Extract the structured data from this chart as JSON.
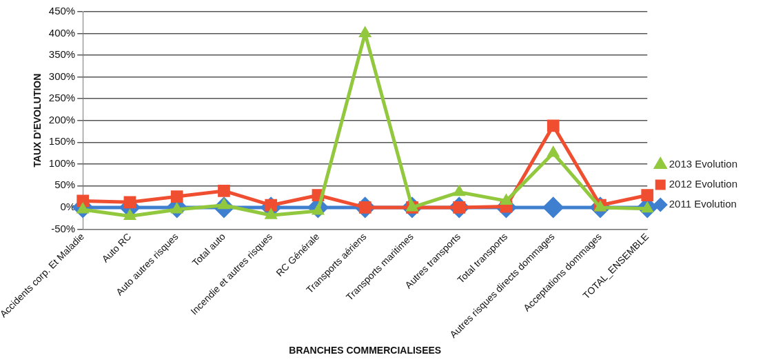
{
  "chart_data": {
    "type": "line",
    "xlabel": "BRANCHES COMMERCIALISEES",
    "ylabel": "TAUX D'EVOLUTION",
    "categories": [
      "Accidents corp. Et Maladie",
      "Auto RC",
      "Auto autres risques",
      "Total auto",
      "Incendie et autres risques",
      "RC Générale",
      "Transports aériens",
      "Transports maritimes",
      "Autres transports",
      "Total transports",
      "Autres risques directs dommages",
      "Acceptations dommages",
      "TOTAL_ENSEMBLE"
    ],
    "series": [
      {
        "name": "2013 Evolution",
        "color": "#92c83e",
        "marker": "triangle",
        "values": [
          -5,
          -20,
          -5,
          5,
          -18,
          -8,
          400,
          0,
          35,
          15,
          125,
          0,
          -3
        ]
      },
      {
        "name": "2012 Evolution",
        "color": "#f04e30",
        "marker": "square",
        "values": [
          15,
          12,
          25,
          38,
          5,
          28,
          0,
          0,
          0,
          2,
          188,
          5,
          28
        ]
      },
      {
        "name": "2011 Evolution",
        "color": "#3f7fcf",
        "marker": "diamond",
        "values": [
          0,
          0,
          0,
          0,
          0,
          0,
          0,
          0,
          0,
          0,
          0,
          0,
          0
        ]
      }
    ],
    "ylim": [
      -50,
      450
    ],
    "yticks": [
      {
        "value": -50,
        "label": "-50%"
      },
      {
        "value": 0,
        "label": "0%"
      },
      {
        "value": 50,
        "label": "50%"
      },
      {
        "value": 100,
        "label": "100%"
      },
      {
        "value": 150,
        "label": "150%"
      },
      {
        "value": 200,
        "label": "200%"
      },
      {
        "value": 250,
        "label": "250%"
      },
      {
        "value": 300,
        "label": "300%"
      },
      {
        "value": 350,
        "label": "350%"
      },
      {
        "value": 400,
        "label": "400%"
      },
      {
        "value": 450,
        "label": "450%"
      }
    ],
    "grid": "y",
    "legend": "right"
  }
}
